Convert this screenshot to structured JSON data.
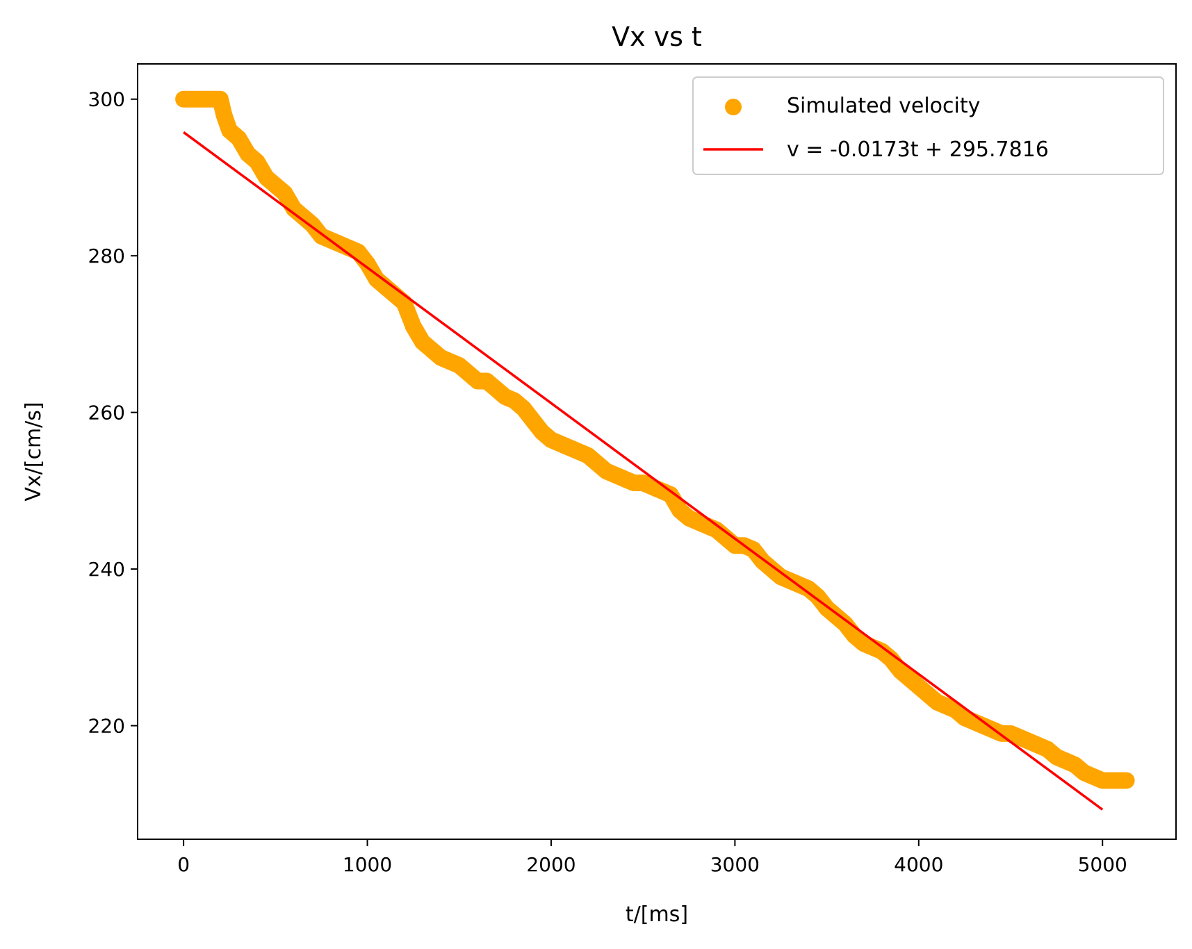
{
  "chart_data": {
    "type": "scatter",
    "title": "Vx vs t",
    "xlabel": "t/[ms]",
    "ylabel": "Vx/[cm/s]",
    "xlim": [
      -250,
      5400
    ],
    "ylim": [
      205.5,
      304.5
    ],
    "xticks": [
      0,
      1000,
      2000,
      3000,
      4000,
      5000
    ],
    "yticks": [
      220,
      240,
      260,
      280,
      300
    ],
    "grid": false,
    "legend_position": "top-right",
    "series": [
      {
        "name": "Simulated velocity",
        "kind": "scatter",
        "color": "#FFA500",
        "x": [
          0,
          50,
          100,
          150,
          200,
          220,
          250,
          300,
          350,
          400,
          450,
          500,
          550,
          600,
          650,
          700,
          750,
          800,
          850,
          900,
          950,
          1000,
          1050,
          1100,
          1150,
          1200,
          1250,
          1300,
          1350,
          1400,
          1450,
          1500,
          1550,
          1600,
          1650,
          1700,
          1750,
          1800,
          1850,
          1900,
          1950,
          2000,
          2050,
          2100,
          2150,
          2200,
          2250,
          2300,
          2350,
          2400,
          2450,
          2500,
          2550,
          2600,
          2650,
          2700,
          2750,
          2800,
          2850,
          2900,
          2950,
          3000,
          3050,
          3100,
          3150,
          3200,
          3250,
          3300,
          3350,
          3400,
          3450,
          3500,
          3550,
          3600,
          3650,
          3700,
          3750,
          3800,
          3850,
          3900,
          3950,
          4000,
          4050,
          4100,
          4150,
          4200,
          4250,
          4300,
          4350,
          4400,
          4450,
          4500,
          4550,
          4600,
          4650,
          4700,
          4750,
          4800,
          4850,
          4900,
          4950,
          5000,
          5050,
          5100,
          5130
        ],
        "y": [
          300,
          300,
          300,
          300,
          300,
          298,
          296,
          295,
          293,
          292,
          290,
          289,
          288,
          286,
          285,
          284,
          282.5,
          282,
          281.5,
          281,
          280.5,
          279,
          277,
          276,
          275,
          274,
          271,
          269,
          268,
          267,
          266.5,
          266,
          265,
          264,
          264,
          263,
          262,
          261.5,
          260.5,
          259,
          257.5,
          256.5,
          256,
          255.5,
          255,
          254.5,
          253.5,
          252.5,
          252,
          251.5,
          251,
          251,
          250.5,
          250,
          249.5,
          247.5,
          246.5,
          246,
          245.5,
          245,
          244,
          243,
          243,
          242.5,
          241,
          240,
          239,
          238.5,
          238,
          237.5,
          236.5,
          235,
          234,
          233,
          231.5,
          230.5,
          230,
          229.5,
          228.5,
          227,
          226,
          225,
          224,
          223,
          222.5,
          222,
          221,
          220.5,
          220,
          219.5,
          219,
          219,
          218.5,
          218,
          217.5,
          217,
          216,
          215.5,
          215,
          214,
          213.5,
          213,
          213,
          213,
          213
        ]
      },
      {
        "name": "v = -0.0173t + 295.7816",
        "kind": "line",
        "color": "#FF0000",
        "slope": -0.0173,
        "intercept": 295.7816,
        "x": [
          0,
          5000
        ],
        "y": [
          295.7816,
          209.2816
        ]
      }
    ]
  }
}
